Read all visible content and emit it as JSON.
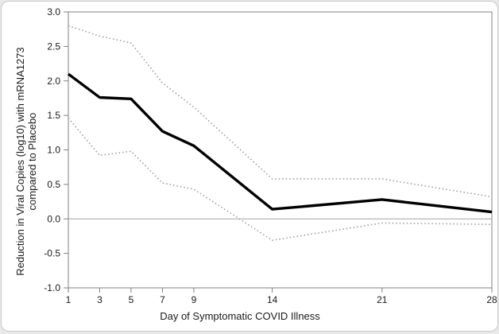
{
  "page": {
    "background": "#e9e9e9"
  },
  "card": {
    "background": "#ffffff",
    "border_color": "#c9c9c9"
  },
  "chart_data": {
    "type": "line",
    "title": "",
    "xlabel": "Day of Symptomatic COVID Illness",
    "ylabel": "Reduction in Viral Copies (log10) with mRNA1273 compared to Placebo",
    "ylabel_lines": [
      "Reduction in Viral Copies (log10) with mRNA1273",
      "compared to Placebo"
    ],
    "x": [
      1,
      3,
      5,
      7,
      9,
      14,
      21,
      28
    ],
    "xtick_labels": [
      "1",
      "3",
      "5",
      "7",
      "9",
      "14",
      "21",
      "28"
    ],
    "ytick_values": [
      3.0,
      2.5,
      2.0,
      1.5,
      1.0,
      0.5,
      0.0,
      -0.5,
      -1.0
    ],
    "ytick_labels": [
      "3.0",
      "2.5",
      "2.0",
      "1.5",
      "1.0",
      "0.5",
      "0.0",
      "-0.5",
      "-1.0"
    ],
    "xlim": [
      1,
      28
    ],
    "ylim": [
      -1.0,
      3.0
    ],
    "grid": false,
    "legend": "none",
    "reference_line_y": 0.0,
    "series": [
      {
        "name": "estimate-solid-line",
        "line_style": "solid",
        "color": "#000000",
        "width": 3.4,
        "values": [
          2.1,
          1.76,
          1.74,
          1.27,
          1.06,
          0.14,
          0.28,
          0.1
        ]
      },
      {
        "name": "upper-dotted-line",
        "line_style": "dotted",
        "color": "#a3a3a3",
        "width": 1.6,
        "values": [
          2.8,
          2.65,
          2.55,
          1.97,
          1.62,
          0.58,
          0.58,
          0.32
        ]
      },
      {
        "name": "lower-dotted-line",
        "line_style": "dotted",
        "color": "#a3a3a3",
        "width": 1.6,
        "values": [
          1.46,
          0.92,
          0.98,
          0.52,
          0.43,
          -0.31,
          -0.06,
          -0.08
        ]
      }
    ],
    "frame_color": "#808080",
    "reference_color": "#a6a6a6",
    "text_color": "#1a1a1a"
  }
}
